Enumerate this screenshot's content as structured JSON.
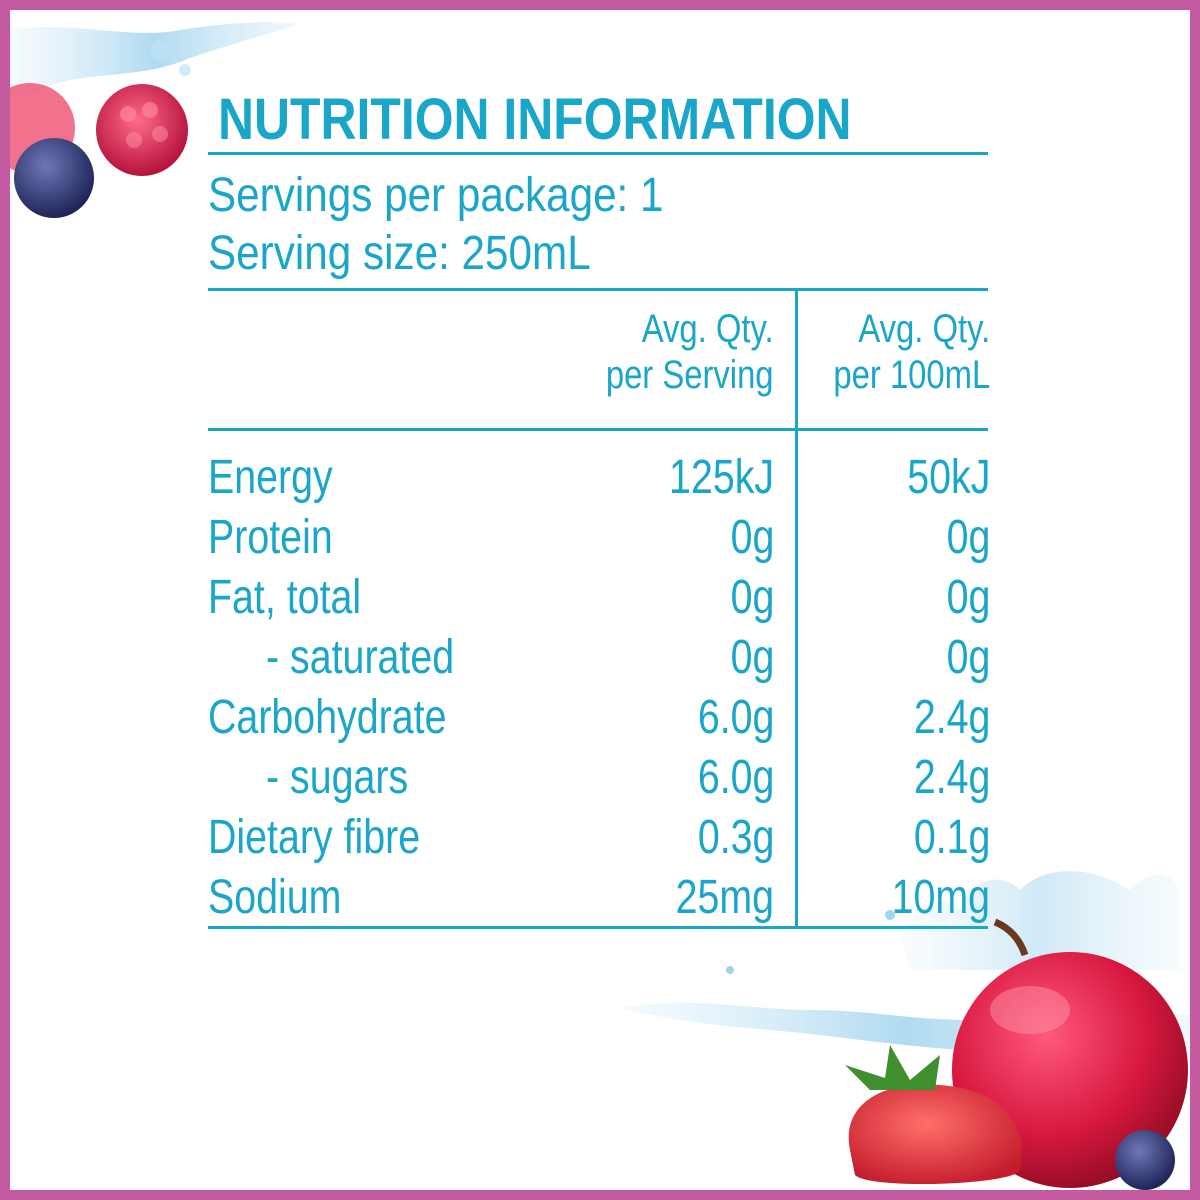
{
  "panel": {
    "title": "NUTRITION INFORMATION",
    "servings_per_package": "Servings per package: 1",
    "serving_size": "Serving size: 250mL"
  },
  "columns": {
    "per_serving_line1": "Avg. Qty.",
    "per_serving_line2": "per Serving",
    "per_100_line1": "Avg. Qty.",
    "per_100_line2": "per 100mL"
  },
  "rows": [
    {
      "label": "Energy",
      "per_serving": "125kJ",
      "per_100ml": "50kJ"
    },
    {
      "label": "Protein",
      "per_serving": "0g",
      "per_100ml": "0g"
    },
    {
      "label": "Fat, total",
      "per_serving": "0g",
      "per_100ml": "0g"
    },
    {
      "label": "- saturated",
      "per_serving": "0g",
      "per_100ml": "0g"
    },
    {
      "label": "Carbohydrate",
      "per_serving": "6.0g",
      "per_100ml": "2.4g"
    },
    {
      "label": "- sugars",
      "per_serving": "6.0g",
      "per_100ml": "2.4g"
    },
    {
      "label": "Dietary fibre",
      "per_serving": "0.3g",
      "per_100ml": "0.1g"
    },
    {
      "label": "Sodium",
      "per_serving": "25mg",
      "per_100ml": "10mg"
    }
  ],
  "colors": {
    "text": "#1aa6c8",
    "border": "#c45aa0",
    "background": "#ffffff"
  },
  "decorations": [
    "raspberry-icon",
    "blueberry-icon",
    "apple-icon",
    "strawberry-icon",
    "water-splash-icon"
  ]
}
